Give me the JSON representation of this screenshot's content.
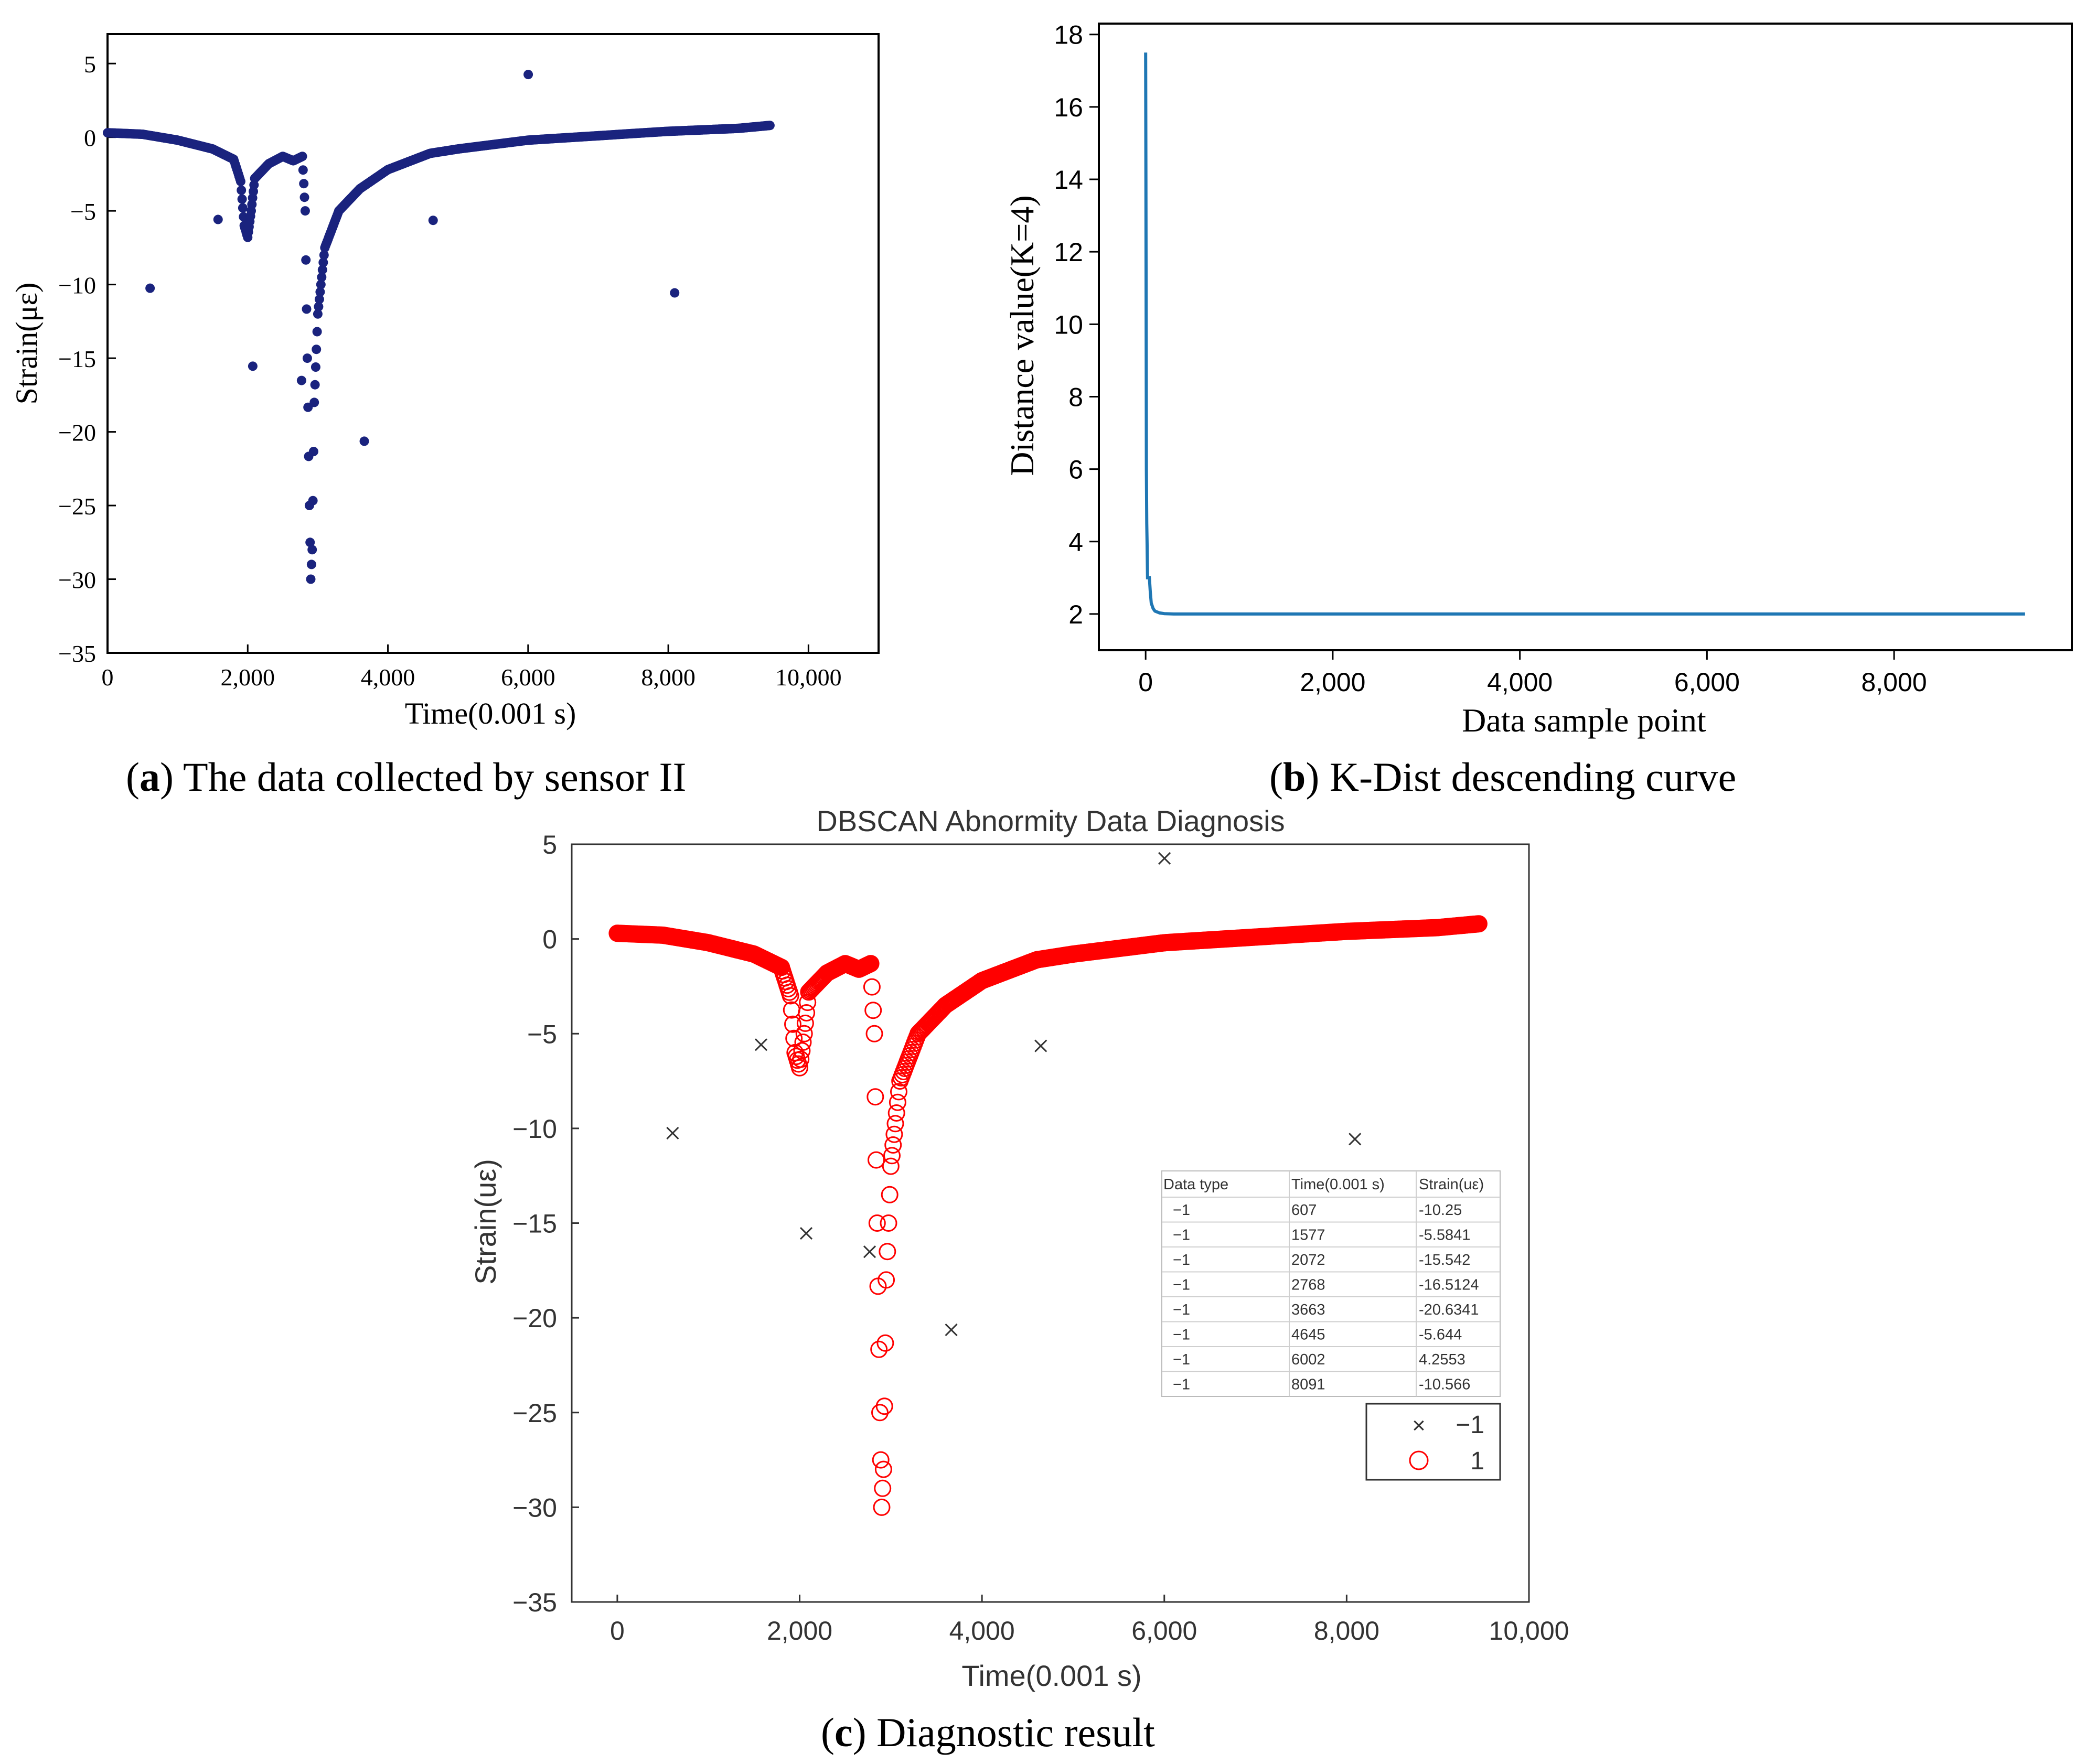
{
  "chart_data": [
    {
      "id": "a",
      "type": "scatter",
      "caption_letter": "a",
      "caption_text": ") The data collected by sensor II",
      "title": "",
      "xlabel": "Time(0.001 s)",
      "ylabel": "Strain(με)",
      "xlim": [
        0,
        11000
      ],
      "ylim": [
        -35,
        7
      ],
      "x_ticks": [
        "0",
        "2,000",
        "4,000",
        "6,000",
        "8,000",
        "10,000"
      ],
      "y_ticks": [
        "5",
        "0",
        "−5",
        "−10",
        "−15",
        "−20",
        "−25",
        "−30",
        "−35"
      ],
      "series_color": "#1a237e",
      "main_curve": {
        "x": [
          0,
          500,
          1000,
          1500,
          1800,
          1900,
          1950,
          2000,
          2050,
          2100,
          2300,
          2500,
          2650,
          2780,
          2820,
          2850,
          2880,
          2900,
          2920,
          2950,
          3000,
          3100,
          3300,
          3600,
          4000,
          4600,
          5000,
          6000,
          7000,
          8000,
          9000,
          9450
        ],
        "y": [
          0.3,
          0.2,
          -0.2,
          -0.8,
          -1.5,
          -3,
          -6,
          -6.8,
          -5,
          -2.8,
          -1.8,
          -1.3,
          -1.6,
          -1.3,
          -5,
          -15,
          -25,
          -30,
          -28,
          -18,
          -12,
          -7.5,
          -5,
          -3.5,
          -2.2,
          -1.1,
          -0.8,
          -0.2,
          0.1,
          0.4,
          0.6,
          0.8
        ]
      },
      "outliers": {
        "x": [
          607,
          1577,
          2072,
          2768,
          3663,
          4645,
          6002,
          8091
        ],
        "y": [
          -10.25,
          -5.5841,
          -15.542,
          -16.5124,
          -20.6341,
          -5.644,
          4.2553,
          -10.566
        ]
      }
    },
    {
      "id": "b",
      "type": "line",
      "caption_letter": "b",
      "caption_text": ") K-Dist descending curve",
      "title": "",
      "xlabel": "Data sample point",
      "ylabel": "Distance value(K=4)",
      "xlim": [
        -500,
        9900
      ],
      "ylim": [
        1,
        18.3
      ],
      "x_ticks": [
        "0",
        "2,000",
        "4,000",
        "6,000",
        "8,000"
      ],
      "y_ticks": [
        "2",
        "4",
        "6",
        "8",
        "10",
        "12",
        "14",
        "16",
        "18"
      ],
      "series_color": "#1f77b4",
      "curve": {
        "x": [
          0,
          3,
          6,
          8,
          12,
          15,
          20,
          30,
          40,
          50,
          60,
          80,
          100,
          150,
          200,
          300,
          1000,
          9400
        ],
        "y": [
          17.5,
          14,
          9,
          6,
          4.5,
          4.0,
          3.0,
          3.0,
          3.0,
          2.6,
          2.3,
          2.15,
          2.08,
          2.03,
          2.01,
          2.0,
          2.0,
          2.0
        ]
      }
    },
    {
      "id": "c",
      "type": "scatter",
      "caption_letter": "c",
      "caption_text": ") Diagnostic result",
      "title": "DBSCAN Abnormity Data Diagnosis",
      "xlabel": "Time(0.001 s)",
      "ylabel": "Strain(uε)",
      "xlim": [
        -500,
        10000
      ],
      "ylim": [
        -35,
        5
      ],
      "x_ticks": [
        "0",
        "2,000",
        "4,000",
        "6,000",
        "8,000",
        "10,000"
      ],
      "y_ticks": [
        "5",
        "0",
        "−5",
        "−10",
        "−15",
        "−20",
        "−25",
        "−30",
        "−35"
      ],
      "cluster_color": "#ff0000",
      "noise_color": "#333333",
      "legend": [
        {
          "symbol": "×",
          "label": "−1"
        },
        {
          "symbol": "○",
          "label": "1"
        }
      ],
      "table": {
        "headers": [
          "Data type",
          "Time(0.001 s)",
          "Strain(uε)"
        ],
        "rows": [
          [
            "−1",
            "607",
            "-10.25"
          ],
          [
            "−1",
            "1577",
            "-5.5841"
          ],
          [
            "−1",
            "2072",
            "-15.542"
          ],
          [
            "−1",
            "2768",
            "-16.5124"
          ],
          [
            "−1",
            "3663",
            "-20.6341"
          ],
          [
            "−1",
            "4645",
            "-5.644"
          ],
          [
            "−1",
            "6002",
            "4.2553"
          ],
          [
            "−1",
            "8091",
            "-10.566"
          ]
        ]
      }
    }
  ]
}
